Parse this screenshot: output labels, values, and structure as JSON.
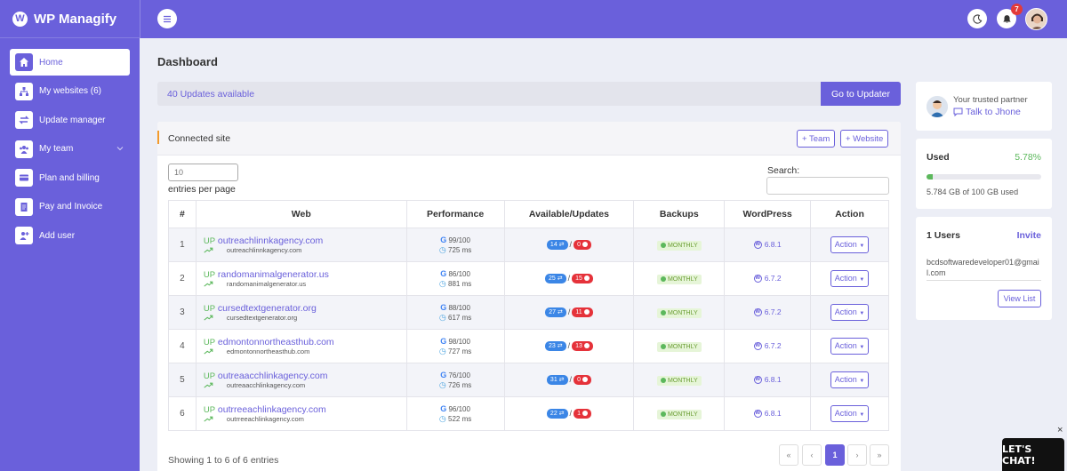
{
  "app": {
    "name": "WP Managify",
    "logo_letter": "W"
  },
  "sidebar": {
    "items": [
      {
        "label": "Home",
        "icon": "home-icon"
      },
      {
        "label": "My websites (6)",
        "icon": "sitemap-icon"
      },
      {
        "label": "Update manager",
        "icon": "sync-icon"
      },
      {
        "label": "My team",
        "icon": "team-icon"
      },
      {
        "label": "Plan and billing",
        "icon": "billing-icon"
      },
      {
        "label": "Pay and Invoice",
        "icon": "invoice-icon"
      },
      {
        "label": "Add user",
        "icon": "add-user-icon"
      }
    ]
  },
  "header": {
    "notification_count": "7"
  },
  "page": {
    "title": "Dashboard"
  },
  "updates": {
    "text": "40 Updates available",
    "button": "Go to Updater"
  },
  "connected": {
    "title": "Connected site",
    "team_button": "+ Team",
    "website_button": "+ Website",
    "entries_value": "10",
    "entries_label": "entries per page",
    "search_label": "Search:",
    "columns": [
      "#",
      "Web",
      "Performance",
      "Available/Updates",
      "Backups",
      "WordPress",
      "Action"
    ],
    "rows": [
      {
        "n": "1",
        "status": "UP",
        "site": "outreachlinnkagency.com",
        "sub": "outreachlinnkagency.com",
        "score": "99/100",
        "ms": "725 ms",
        "available": "14",
        "updates": "0",
        "backup": "MONTHLY",
        "wp": "6.8.1",
        "action": "Action"
      },
      {
        "n": "2",
        "status": "UP",
        "site": "randomanimalgenerator.us",
        "sub": "randomanimalgenerator.us",
        "score": "86/100",
        "ms": "881 ms",
        "available": "25",
        "updates": "15",
        "backup": "MONTHLY",
        "wp": "6.7.2",
        "action": "Action"
      },
      {
        "n": "3",
        "status": "UP",
        "site": "cursedtextgenerator.org",
        "sub": "cursedtextgenerator.org",
        "score": "88/100",
        "ms": "617 ms",
        "available": "27",
        "updates": "11",
        "backup": "MONTHLY",
        "wp": "6.7.2",
        "action": "Action"
      },
      {
        "n": "4",
        "status": "UP",
        "site": "edmontonnortheasthub.com",
        "sub": "edmontonnortheasthub.com",
        "score": "98/100",
        "ms": "727 ms",
        "available": "23",
        "updates": "13",
        "backup": "MONTHLY",
        "wp": "6.7.2",
        "action": "Action"
      },
      {
        "n": "5",
        "status": "UP",
        "site": "outreaacchlinkagency.com",
        "sub": "outreaacchlinkagency.com",
        "score": "76/100",
        "ms": "726 ms",
        "available": "31",
        "updates": "0",
        "backup": "MONTHLY",
        "wp": "6.8.1",
        "action": "Action"
      },
      {
        "n": "6",
        "status": "UP",
        "site": "outrreeachlinkagency.com",
        "sub": "outrreeachlinkagency.com",
        "score": "96/100",
        "ms": "522 ms",
        "available": "22",
        "updates": "1",
        "backup": "MONTHLY",
        "wp": "6.8.1",
        "action": "Action"
      }
    ],
    "showing": "Showing 1 to 6 of 6 entries",
    "pagination": {
      "first": "«",
      "prev": "‹",
      "current": "1",
      "next": "›",
      "last": "»"
    }
  },
  "partner": {
    "line": "Your trusted partner",
    "talk": "Talk to Jhone"
  },
  "storage": {
    "label": "Used",
    "percent_text": "5.78%",
    "percent": 5.78,
    "detail": "5.784 GB of 100 GB used"
  },
  "users": {
    "label": "1 Users",
    "invite": "Invite",
    "email": "bcdsoftwaredeveloper01@gmail.com",
    "view_list": "View List"
  },
  "chat": {
    "label": "LET'S CHAT!",
    "close": "×"
  },
  "colors": {
    "primary": "#6a60db",
    "success": "#5cb85c",
    "danger": "#e5323a",
    "info": "#3b86e6",
    "accent_bar": "#f39a2c"
  }
}
